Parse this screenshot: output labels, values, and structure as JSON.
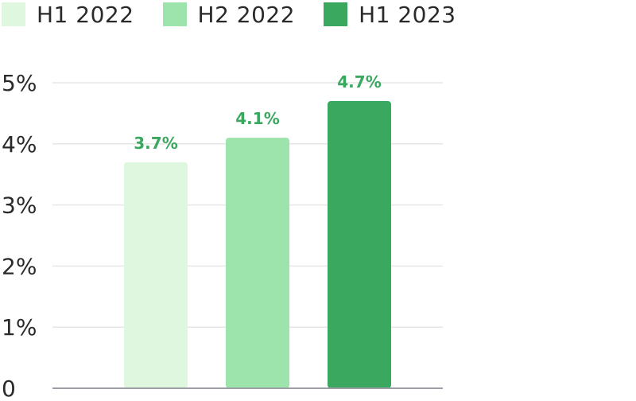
{
  "chart_data": {
    "type": "bar",
    "categories": [
      "H1 2022",
      "H2 2022",
      "H1 2023"
    ],
    "values": [
      3.7,
      4.1,
      4.7
    ],
    "value_labels": [
      "3.7%",
      "4.1%",
      "4.7%"
    ],
    "title": "",
    "xlabel": "",
    "ylabel": "",
    "ylim": [
      0,
      5
    ],
    "yticks": [
      "0",
      "1%",
      "2%",
      "3%",
      "4%",
      "5%"
    ],
    "grid": true,
    "legend_position": "top-left",
    "colors": [
      "#dff6df",
      "#9de3ac",
      "#3aa85f"
    ],
    "grid_color": "#e6e6e6",
    "baseline_color": "#9aa0a6",
    "value_label_color": "#3aa85f",
    "text_color": "#2a2a2a"
  },
  "legend": {
    "items": [
      {
        "label": "H1 2022",
        "color": "#dff6df"
      },
      {
        "label": "H2 2022",
        "color": "#9de3ac"
      },
      {
        "label": "H1 2023",
        "color": "#3aa85f"
      }
    ]
  }
}
